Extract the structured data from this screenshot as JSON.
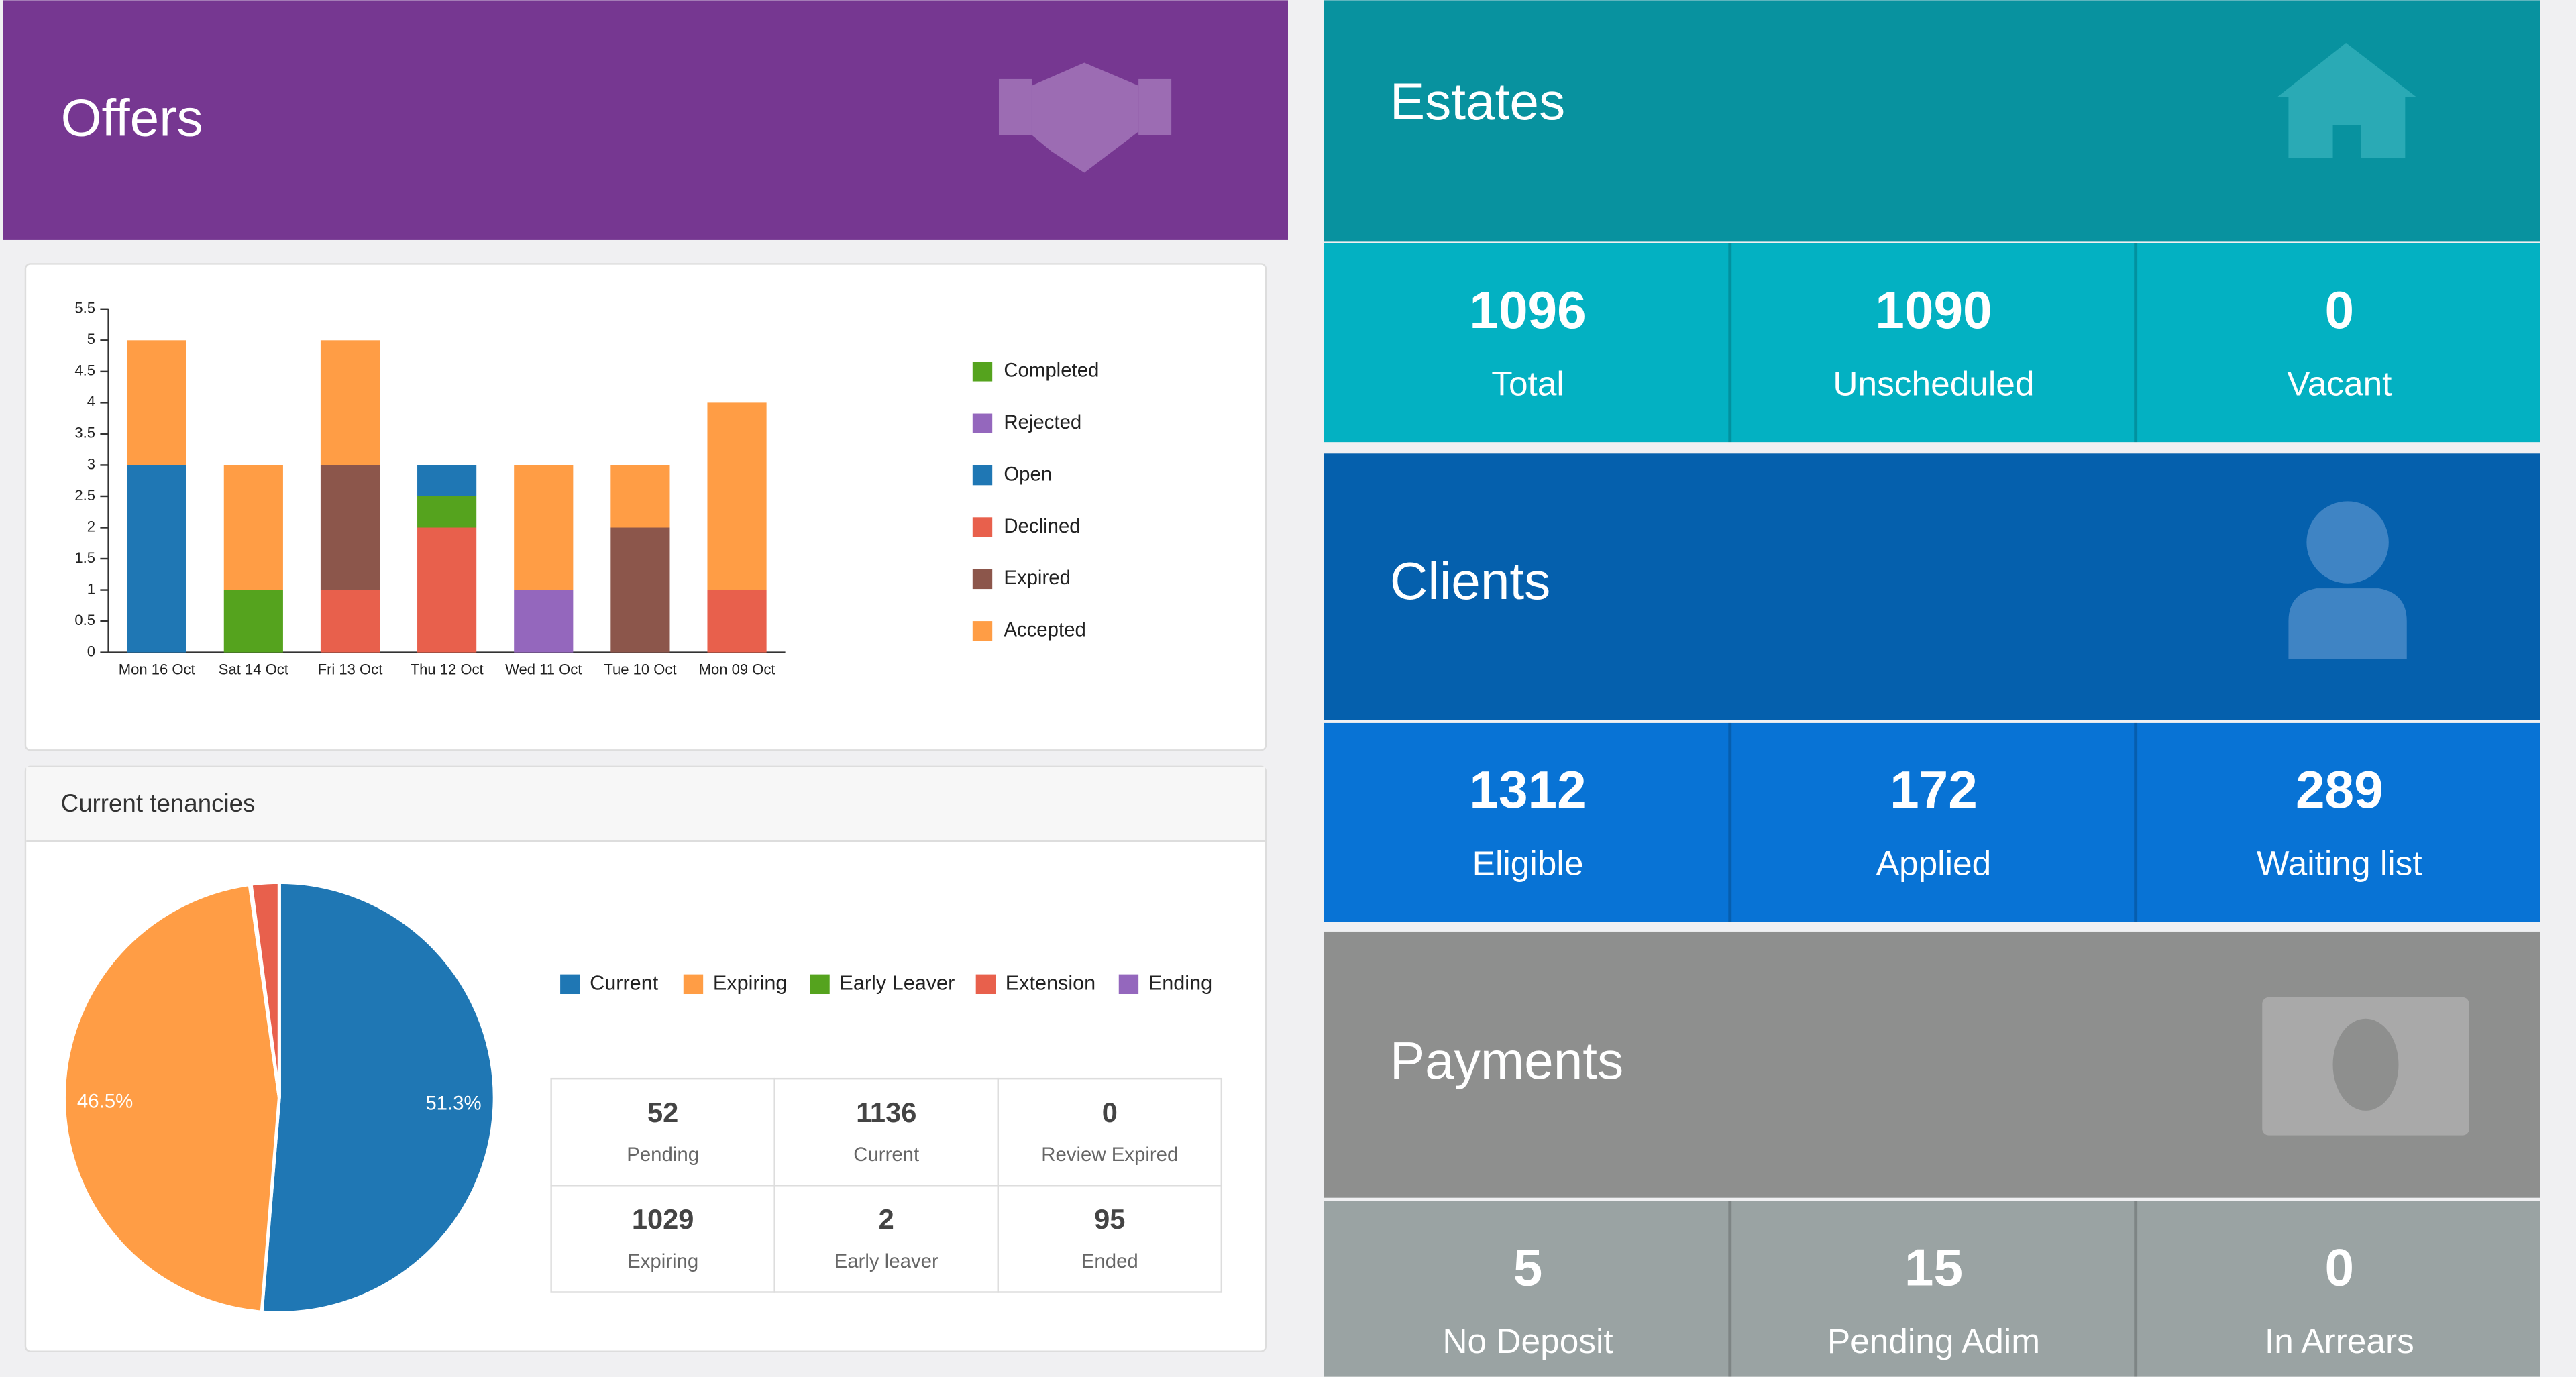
{
  "offers_title": "Offers",
  "chart_data": [
    {
      "type": "bar",
      "stacked": true,
      "categories": [
        "Mon 16 Oct",
        "Sat 14 Oct",
        "Fri 13 Oct",
        "Thu 12 Oct",
        "Wed 11 Oct",
        "Tue 10 Oct",
        "Mon 09 Oct"
      ],
      "series": [
        {
          "name": "Completed",
          "color": "#55a31e",
          "values": [
            0,
            1,
            0,
            0.5,
            0,
            0,
            0
          ]
        },
        {
          "name": "Rejected",
          "color": "#9467bd",
          "values": [
            0,
            0,
            0,
            0,
            1,
            0,
            0
          ]
        },
        {
          "name": "Open",
          "color": "#1f77b4",
          "values": [
            3,
            0,
            0,
            0.5,
            0,
            0,
            0
          ]
        },
        {
          "name": "Declined",
          "color": "#e8604c",
          "values": [
            0,
            0,
            1,
            2,
            0,
            0,
            1
          ]
        },
        {
          "name": "Expired",
          "color": "#8c564b",
          "values": [
            0,
            0,
            2,
            0,
            0,
            2,
            0
          ]
        },
        {
          "name": "Accepted",
          "color": "#ff9d45",
          "values": [
            2,
            2,
            2,
            0,
            2,
            1,
            3
          ]
        }
      ],
      "ylim": [
        0,
        5.5
      ],
      "yticks": [
        0,
        0.5,
        1,
        1.5,
        2,
        2.5,
        3,
        3.5,
        4,
        4.5,
        5,
        5.5
      ],
      "legend": "right"
    },
    {
      "type": "pie",
      "title": "Current tenancies",
      "categories": [
        "Current",
        "Expiring",
        "Early Leaver",
        "Extension",
        "Ending"
      ],
      "colors": [
        "#1f77b4",
        "#ff9d45",
        "#55a31e",
        "#e8604c",
        "#9467bd"
      ],
      "values": [
        51.3,
        46.5,
        0.1,
        2.1,
        0
      ],
      "value_labels": [
        "51.3%",
        "46.5%",
        null,
        null,
        null
      ],
      "legend": "top"
    }
  ],
  "tenancy_stats": [
    {
      "value": "52",
      "label": "Pending"
    },
    {
      "value": "1136",
      "label": "Current"
    },
    {
      "value": "0",
      "label": "Review Expired"
    },
    {
      "value": "1029",
      "label": "Expiring"
    },
    {
      "value": "2",
      "label": "Early leaver"
    },
    {
      "value": "95",
      "label": "Ended"
    }
  ],
  "tiles": [
    {
      "title": "Estates",
      "stats": [
        {
          "value": "1096",
          "label": "Total"
        },
        {
          "value": "1090",
          "label": "Unscheduled"
        },
        {
          "value": "0",
          "label": "Vacant"
        }
      ]
    },
    {
      "title": "Clients",
      "stats": [
        {
          "value": "1312",
          "label": "Eligible"
        },
        {
          "value": "172",
          "label": "Applied"
        },
        {
          "value": "289",
          "label": "Waiting list"
        }
      ]
    },
    {
      "title": "Payments",
      "stats": [
        {
          "value": "5",
          "label": "No Deposit"
        },
        {
          "value": "15",
          "label": "Pending Adim"
        },
        {
          "value": "0",
          "label": "In Arrears"
        }
      ]
    }
  ]
}
